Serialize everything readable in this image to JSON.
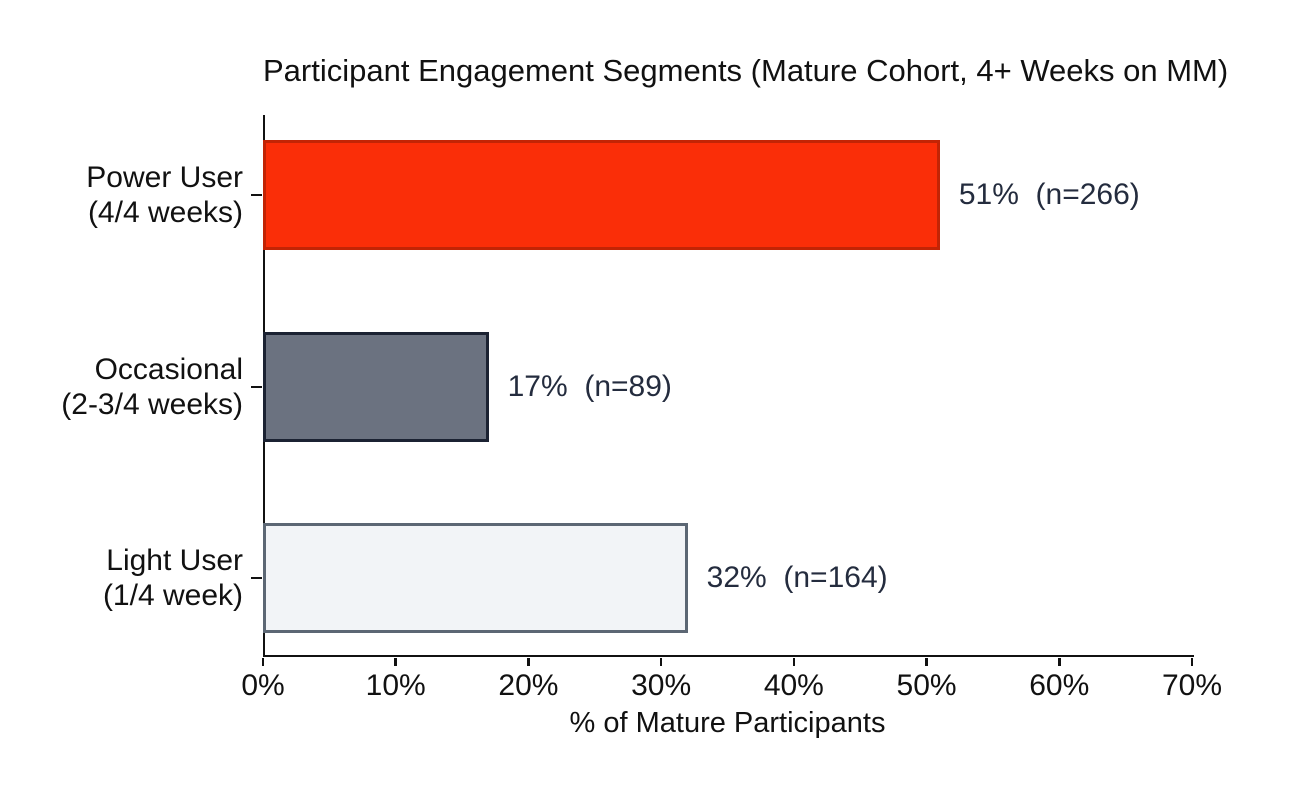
{
  "chart_data": {
    "type": "bar",
    "orientation": "horizontal",
    "title": "Participant Engagement Segments (Mature Cohort, 4+ Weeks on MM)",
    "xlabel": "% of Mature Participants",
    "ylabel": "",
    "xlim": [
      0,
      70
    ],
    "x_tick_values": [
      0,
      10,
      20,
      30,
      40,
      50,
      60,
      70
    ],
    "x_tick_labels": [
      "0%",
      "10%",
      "20%",
      "30%",
      "40%",
      "50%",
      "60%",
      "70%"
    ],
    "grid": false,
    "legend": null,
    "categories": [
      "Power User (4/4 weeks)",
      "Occasional (2-3/4 weeks)",
      "Light User (1/4 week)"
    ],
    "values": [
      51,
      17,
      32
    ],
    "counts": [
      266,
      89,
      164
    ],
    "bars": [
      {
        "label_lines": [
          "Power User",
          "(4/4 weeks)"
        ],
        "value_pct": 51,
        "n": 266,
        "annotation": "51%  (n=266)",
        "fill_color": "#FA2E08",
        "edge_color": "#C22405"
      },
      {
        "label_lines": [
          "Occasional",
          "(2-3/4 weeks)"
        ],
        "value_pct": 17,
        "n": 89,
        "annotation": "17%  (n=89)",
        "fill_color": "#6B7280",
        "edge_color": "#1B2232"
      },
      {
        "label_lines": [
          "Light User",
          "(1/4 week)"
        ],
        "value_pct": 32,
        "n": 164,
        "annotation": "32%  (n=164)",
        "fill_color": "#F2F4F7",
        "edge_color": "#5C6774"
      }
    ],
    "colors": {
      "annotation_text": "#242C3E",
      "axis": "#111111",
      "background": "#FFFFFF"
    }
  }
}
